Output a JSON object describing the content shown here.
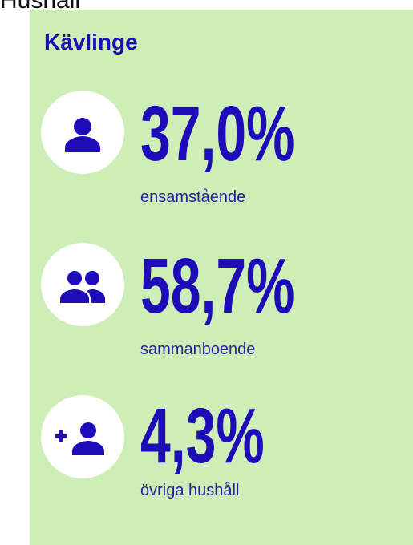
{
  "header": {
    "title": "Hushåll"
  },
  "panel": {
    "title": "Kävlinge",
    "items": [
      {
        "value": "37,0%",
        "label": "ensamstående"
      },
      {
        "value": "58,7%",
        "label": "sammanboende"
      },
      {
        "value": "4,3%",
        "label": "övriga hushåll"
      }
    ]
  }
}
